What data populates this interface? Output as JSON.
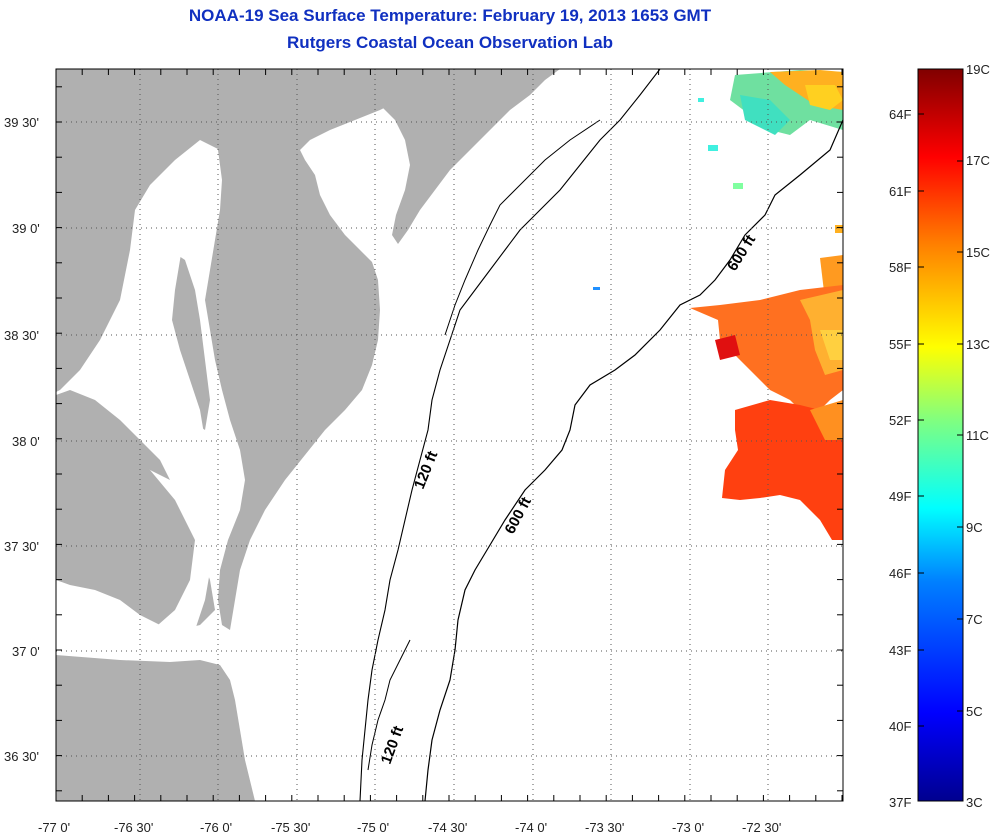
{
  "title": "NOAA-19 Sea Surface Temperature:  February 19, 2013 1653 GMT",
  "subtitle": "Rutgers Coastal Ocean Observation Lab",
  "lon_labels": [
    "-77 0'",
    "-76 30'",
    "-76 0'",
    "-75 30'",
    "-75 0'",
    "-74 30'",
    "-74 0'",
    "-73 30'",
    "-73 0'",
    "-72 30'"
  ],
  "lat_labels": [
    "39 30'",
    "39 0'",
    "38 30'",
    "38 0'",
    "37 30'",
    "37 0'",
    "36 30'"
  ],
  "contour_labels": [
    "600 ft",
    "600 ft",
    "120 ft",
    "120 ft"
  ],
  "colorbar": {
    "fahrenheit_labels": [
      "64F",
      "61F",
      "58F",
      "55F",
      "52F",
      "49F",
      "46F",
      "43F",
      "40F",
      "37F"
    ],
    "celsius_labels": [
      "19C",
      "17C",
      "15C",
      "13C",
      "11C",
      "9C",
      "7C",
      "5C",
      "3C"
    ],
    "min_c": 3,
    "max_c": 19,
    "colors": [
      "#00008f",
      "#0000ff",
      "#0080ff",
      "#00ffff",
      "#80ff80",
      "#ffff00",
      "#ff8000",
      "#ff0000",
      "#800000"
    ]
  },
  "colors": {
    "land": "#b0b0b0",
    "water": "#ffffff",
    "title": "#1030c0"
  }
}
